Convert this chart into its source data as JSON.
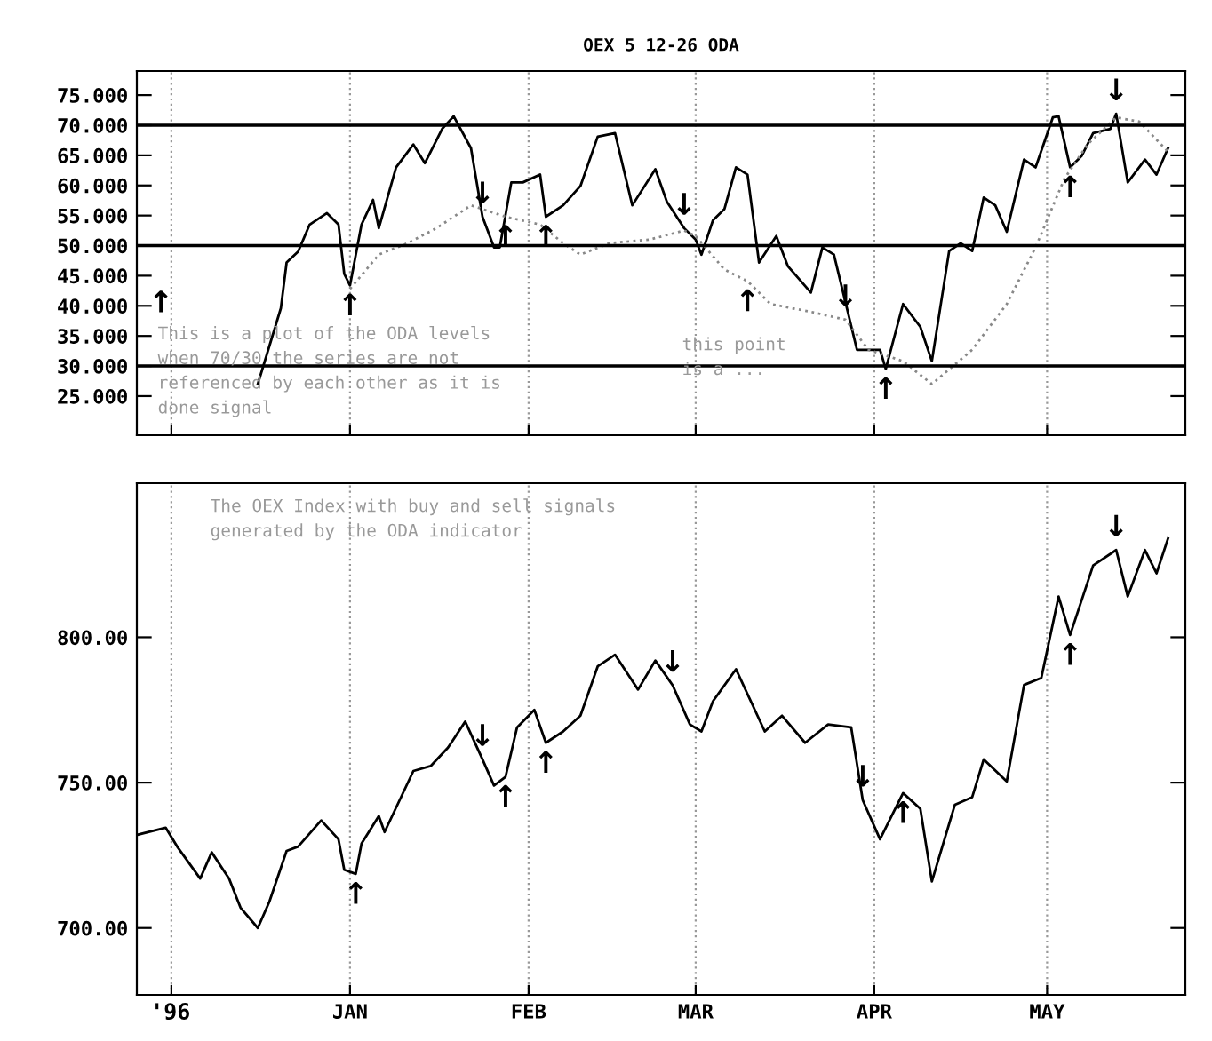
{
  "chart_data": [
    {
      "type": "line",
      "title": "OEX 5 12-26 ODA",
      "xlim": [
        "1995-11-25",
        "1996-05-25"
      ],
      "xticks": [
        {
          "value": "1995-12-01",
          "label": null
        },
        {
          "value": "1996-01-01",
          "label": null
        },
        {
          "value": "1996-02-01",
          "label": null
        },
        {
          "value": "1996-03-01",
          "label": null
        },
        {
          "value": "1996-04-01",
          "label": null
        },
        {
          "value": "1996-05-01",
          "label": null
        }
      ],
      "ylim": [
        18.5,
        79
      ],
      "yticks": [
        {
          "value": 25,
          "label": "25.000"
        },
        {
          "value": 30,
          "label": "30.000"
        },
        {
          "value": 35,
          "label": "35.000"
        },
        {
          "value": 40,
          "label": "40.000"
        },
        {
          "value": 45,
          "label": "45.000"
        },
        {
          "value": 50,
          "label": "50.000"
        },
        {
          "value": 55,
          "label": "55.000"
        },
        {
          "value": 60,
          "label": "60.000"
        },
        {
          "value": 65,
          "label": "65.000"
        },
        {
          "value": 70,
          "label": "70.000"
        },
        {
          "value": 75,
          "label": "75.000"
        }
      ],
      "tick_labels": "y",
      "grid": "x",
      "ref_lines": [
        {
          "axis": "y",
          "value": 70,
          "color": "#000000"
        },
        {
          "axis": "y",
          "value": 50,
          "color": "#000000"
        },
        {
          "axis": "y",
          "value": 30,
          "color": "#000000"
        }
      ],
      "series": [
        {
          "color": "#000000",
          "line_style": "solid",
          "x": [
            "1995-12-16",
            "1995-12-20",
            "1995-12-21",
            "1995-12-23",
            "1995-12-25",
            "1995-12-28",
            "1995-12-30",
            "1995-12-31",
            "1996-01-01",
            "1996-01-03",
            "1996-01-05",
            "1996-01-06",
            "1996-01-09",
            "1996-01-12",
            "1996-01-14",
            "1996-01-17",
            "1996-01-19",
            "1996-01-22",
            "1996-01-24",
            "1996-01-26",
            "1996-01-27",
            "1996-01-29",
            "1996-01-31",
            "1996-02-03",
            "1996-02-04",
            "1996-02-07",
            "1996-02-10",
            "1996-02-13",
            "1996-02-16",
            "1996-02-19",
            "1996-02-23",
            "1996-02-25",
            "1996-02-28",
            "1996-03-01",
            "1996-03-02",
            "1996-03-04",
            "1996-03-06",
            "1996-03-08",
            "1996-03-10",
            "1996-03-12",
            "1996-03-15",
            "1996-03-17",
            "1996-03-21",
            "1996-03-23",
            "1996-03-25",
            "1996-03-29",
            "1996-04-02",
            "1996-04-03",
            "1996-04-06",
            "1996-04-09",
            "1996-04-11",
            "1996-04-14",
            "1996-04-16",
            "1996-04-18",
            "1996-04-20",
            "1996-04-22",
            "1996-04-24",
            "1996-04-27",
            "1996-04-29",
            "1996-05-02",
            "1996-05-03",
            "1996-05-05",
            "1996-05-07",
            "1996-05-09",
            "1996-05-12",
            "1996-05-13",
            "1996-05-15",
            "1996-05-18",
            "1996-05-20",
            "1996-05-22"
          ],
          "values": [
            27,
            39.6,
            47.2,
            49,
            53.5,
            55.4,
            53.5,
            45.3,
            43.4,
            53.5,
            57.6,
            52.9,
            63,
            66.8,
            63.7,
            69.4,
            71.5,
            66.2,
            54.8,
            49.7,
            49.7,
            60.5,
            60.5,
            61.8,
            54.8,
            56.7,
            59.9,
            68.1,
            68.7,
            56.7,
            62.7,
            57.3,
            52.9,
            51,
            48.5,
            54.2,
            56.1,
            63,
            61.8,
            47.2,
            51.6,
            46.6,
            42.2,
            49.7,
            48.5,
            32.7,
            32.7,
            29.5,
            40.3,
            36.5,
            30.8,
            49.1,
            50.4,
            49.1,
            58,
            56.7,
            52.3,
            64.3,
            63,
            71.3,
            71.5,
            63,
            64.9,
            68.7,
            69.4,
            71.9,
            60.5,
            64.3,
            61.8,
            66.2
          ]
        },
        {
          "color": "#888888",
          "line_style": "dotted",
          "x": [
            "1996-01-01",
            "1996-01-06",
            "1996-01-11",
            "1996-01-16",
            "1996-01-22",
            "1996-01-28",
            "1996-02-03",
            "1996-02-07",
            "1996-02-10",
            "1996-02-15",
            "1996-02-22",
            "1996-02-28",
            "1996-03-01",
            "1996-03-06",
            "1996-03-10",
            "1996-03-14",
            "1996-03-21",
            "1996-03-27",
            "1996-03-31",
            "1996-04-06",
            "1996-04-11",
            "1996-04-18",
            "1996-04-24",
            "1996-04-29",
            "1996-05-04",
            "1996-05-08",
            "1996-05-13",
            "1996-05-17",
            "1996-05-22"
          ],
          "values": [
            42.8,
            48.5,
            50.4,
            52.9,
            56.7,
            54.8,
            53.5,
            50.4,
            48.5,
            50.4,
            51,
            52.5,
            51.6,
            46,
            44.1,
            40.3,
            39,
            37.7,
            32.7,
            30.8,
            27,
            32.7,
            40.3,
            49.7,
            61.1,
            66.8,
            71.3,
            70.6,
            65.6
          ]
        }
      ],
      "annotations": [
        "This is a plot of the ODA levels\nwhen 70/30 the series are not\nreferenced by each other as it is\ndone signal",
        "this point\nis a ...",
        "↑",
        {
          "text": "↑",
          "x": "1996-01-01",
          "y": 43.4
        },
        {
          "text": "↓",
          "x": "1996-01-24",
          "y": 54.8
        },
        {
          "text": "↑",
          "x": "1996-01-28",
          "y": 54.8
        },
        {
          "text": "↑",
          "x": "1996-02-04",
          "y": 54.8
        },
        {
          "text": "↓",
          "x": "1996-02-28",
          "y": 52.9
        },
        {
          "text": "↑",
          "x": "1996-03-10",
          "y": 44.1
        },
        {
          "text": "↓",
          "x": "1996-03-27",
          "y": 37.7
        },
        {
          "text": "↑",
          "x": "1996-04-03",
          "y": 29.5
        },
        {
          "text": "↑",
          "x": "1996-05-05",
          "y": 63
        },
        {
          "text": "↓",
          "x": "1996-05-13",
          "y": 71.9
        }
      ]
    },
    {
      "type": "line",
      "xlim": [
        "1995-11-25",
        "1996-05-25"
      ],
      "xticks": [
        {
          "value": "1995-12-01",
          "label": null
        },
        {
          "value": "1996-01-01",
          "label": "JAN"
        },
        {
          "value": "1996-02-01",
          "label": "FEB"
        },
        {
          "value": "1996-03-01",
          "label": "MAR"
        },
        {
          "value": "1996-04-01",
          "label": "APR"
        },
        {
          "value": "1996-05-01",
          "label": "MAY"
        }
      ],
      "ylim": [
        677,
        853
      ],
      "yticks": [
        {
          "value": 700,
          "label": "700.00"
        },
        {
          "value": 750,
          "label": "750.00"
        },
        {
          "value": 800,
          "label": "800.00"
        }
      ],
      "grid": "x",
      "series": [
        {
          "color": "#000000",
          "line_style": "solid",
          "x": [
            "1995-11-25",
            "1995-11-30",
            "1995-12-02",
            "1995-12-06",
            "1995-12-08",
            "1995-12-11",
            "1995-12-13",
            "1995-12-16",
            "1995-12-18",
            "1995-12-21",
            "1995-12-23",
            "1995-12-27",
            "1995-12-30",
            "1995-12-31",
            "1996-01-02",
            "1996-01-03",
            "1996-01-06",
            "1996-01-07",
            "1996-01-12",
            "1996-01-15",
            "1996-01-18",
            "1996-01-21",
            "1996-01-24",
            "1996-01-26",
            "1996-01-28",
            "1996-01-30",
            "1996-02-02",
            "1996-02-04",
            "1996-02-07",
            "1996-02-10",
            "1996-02-13",
            "1996-02-16",
            "1996-02-20",
            "1996-02-23",
            "1996-02-26",
            "1996-02-29",
            "1996-03-02",
            "1996-03-04",
            "1996-03-08",
            "1996-03-13",
            "1996-03-16",
            "1996-03-20",
            "1996-03-24",
            "1996-03-28",
            "1996-03-30",
            "1996-04-02",
            "1996-04-06",
            "1996-04-09",
            "1996-04-11",
            "1996-04-15",
            "1996-04-18",
            "1996-04-20",
            "1996-04-24",
            "1996-04-27",
            "1996-04-30",
            "1996-05-03",
            "1996-05-05",
            "1996-05-09",
            "1996-05-13",
            "1996-05-15",
            "1996-05-18",
            "1996-05-20",
            "1996-05-22"
          ],
          "values": [
            732,
            734.5,
            728,
            717,
            726,
            717,
            707,
            700,
            709,
            726.5,
            728,
            737,
            730.5,
            720,
            718.6,
            729,
            738.5,
            733,
            754,
            755.7,
            762,
            771,
            758,
            749,
            752,
            769,
            775,
            763.7,
            767.6,
            773,
            790,
            794,
            782,
            792,
            783.5,
            770,
            767.6,
            778,
            789,
            767.6,
            773,
            763.7,
            770,
            769,
            744,
            730.5,
            746.4,
            741,
            716,
            742.4,
            745,
            758,
            750.4,
            783.6,
            786,
            814,
            800.8,
            824.7,
            830,
            814,
            830,
            822,
            834
          ]
        }
      ],
      "annotations": [
        "The OEX Index with buy and sell signals\ngenerated by the ODA indicator",
        "'96",
        {
          "text": "↑",
          "x": "1996-01-02",
          "y": 718.6
        },
        {
          "text": "↓",
          "x": "1996-01-24",
          "y": 758
        },
        {
          "text": "↑",
          "x": "1996-01-28",
          "y": 752
        },
        {
          "text": "↑",
          "x": "1996-02-04",
          "y": 763.7
        },
        {
          "text": "↓",
          "x": "1996-02-26",
          "y": 783.5
        },
        {
          "text": "↓",
          "x": "1996-03-30",
          "y": 744
        },
        {
          "text": "↑",
          "x": "1996-04-06",
          "y": 746.4
        },
        {
          "text": "↑",
          "x": "1996-05-05",
          "y": 800.8
        },
        {
          "text": "↓",
          "x": "1996-05-13",
          "y": 830
        }
      ]
    }
  ]
}
